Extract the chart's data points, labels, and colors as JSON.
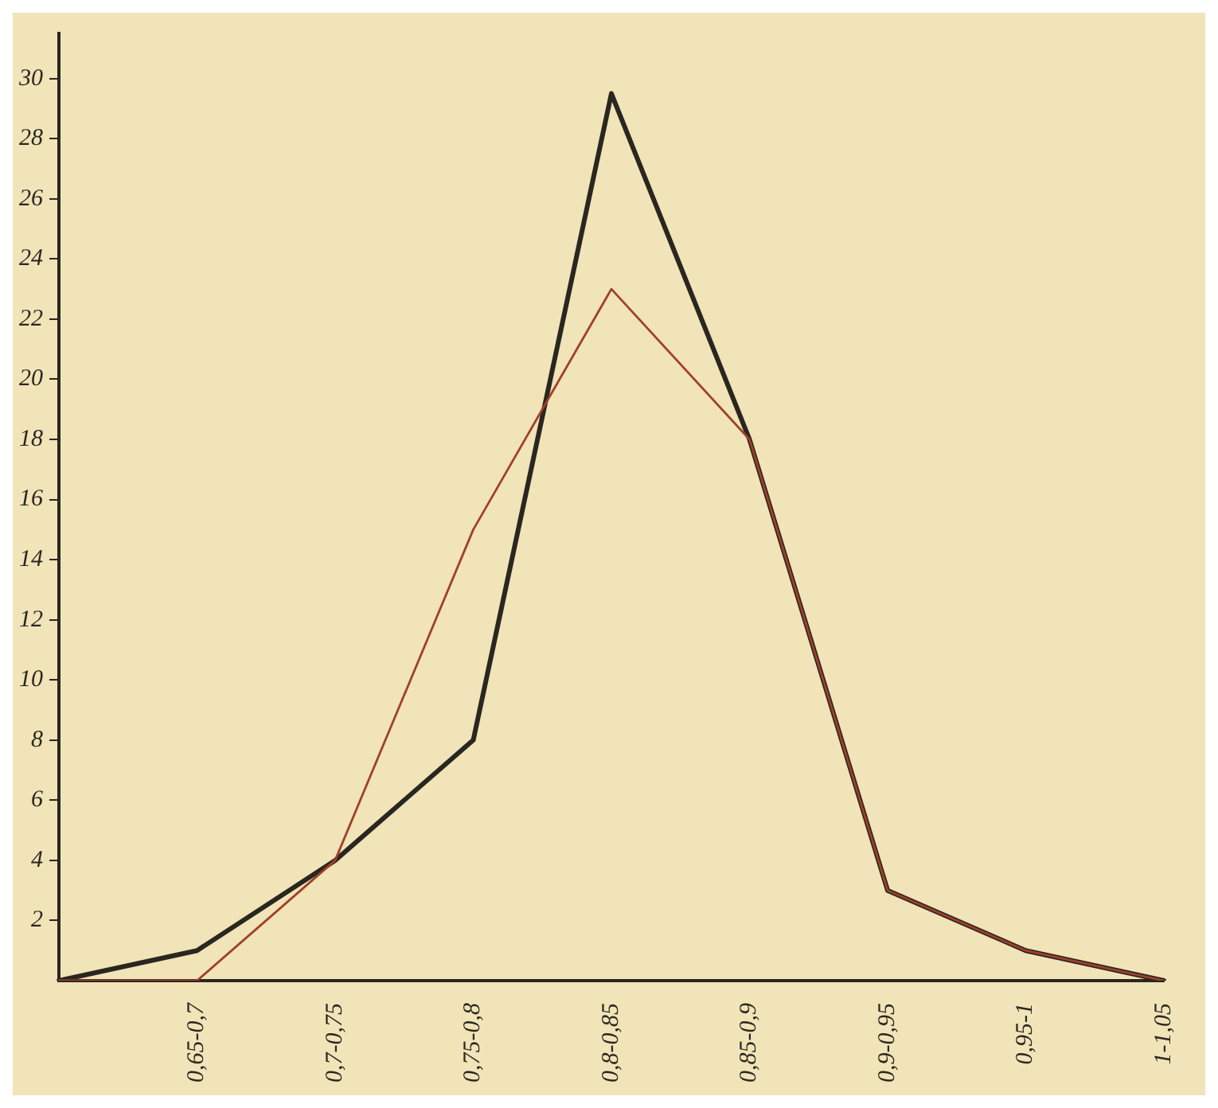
{
  "chart_data": {
    "type": "line",
    "categories": [
      null,
      "0,65-0,7",
      "0,7-0,75",
      "0,75-0,8",
      "0,8-0,85",
      "0,85-0,9",
      "0,9-0,95",
      "0,95-1",
      "1-1,05"
    ],
    "series": [
      {
        "color": "#2a2620",
        "values": [
          0,
          1,
          4,
          8,
          29.5,
          18,
          3,
          1,
          0
        ]
      },
      {
        "color": "#a0402a",
        "values": [
          0,
          0,
          4,
          15,
          23,
          18,
          3,
          1,
          0
        ]
      }
    ],
    "ylim": [
      0,
      31.5
    ],
    "yticks": [
      2,
      4,
      6,
      8,
      10,
      12,
      14,
      16,
      18,
      20,
      22,
      24,
      26,
      28,
      30
    ],
    "grid": false,
    "legend": false,
    "marker": "none",
    "line_style": "solid"
  }
}
